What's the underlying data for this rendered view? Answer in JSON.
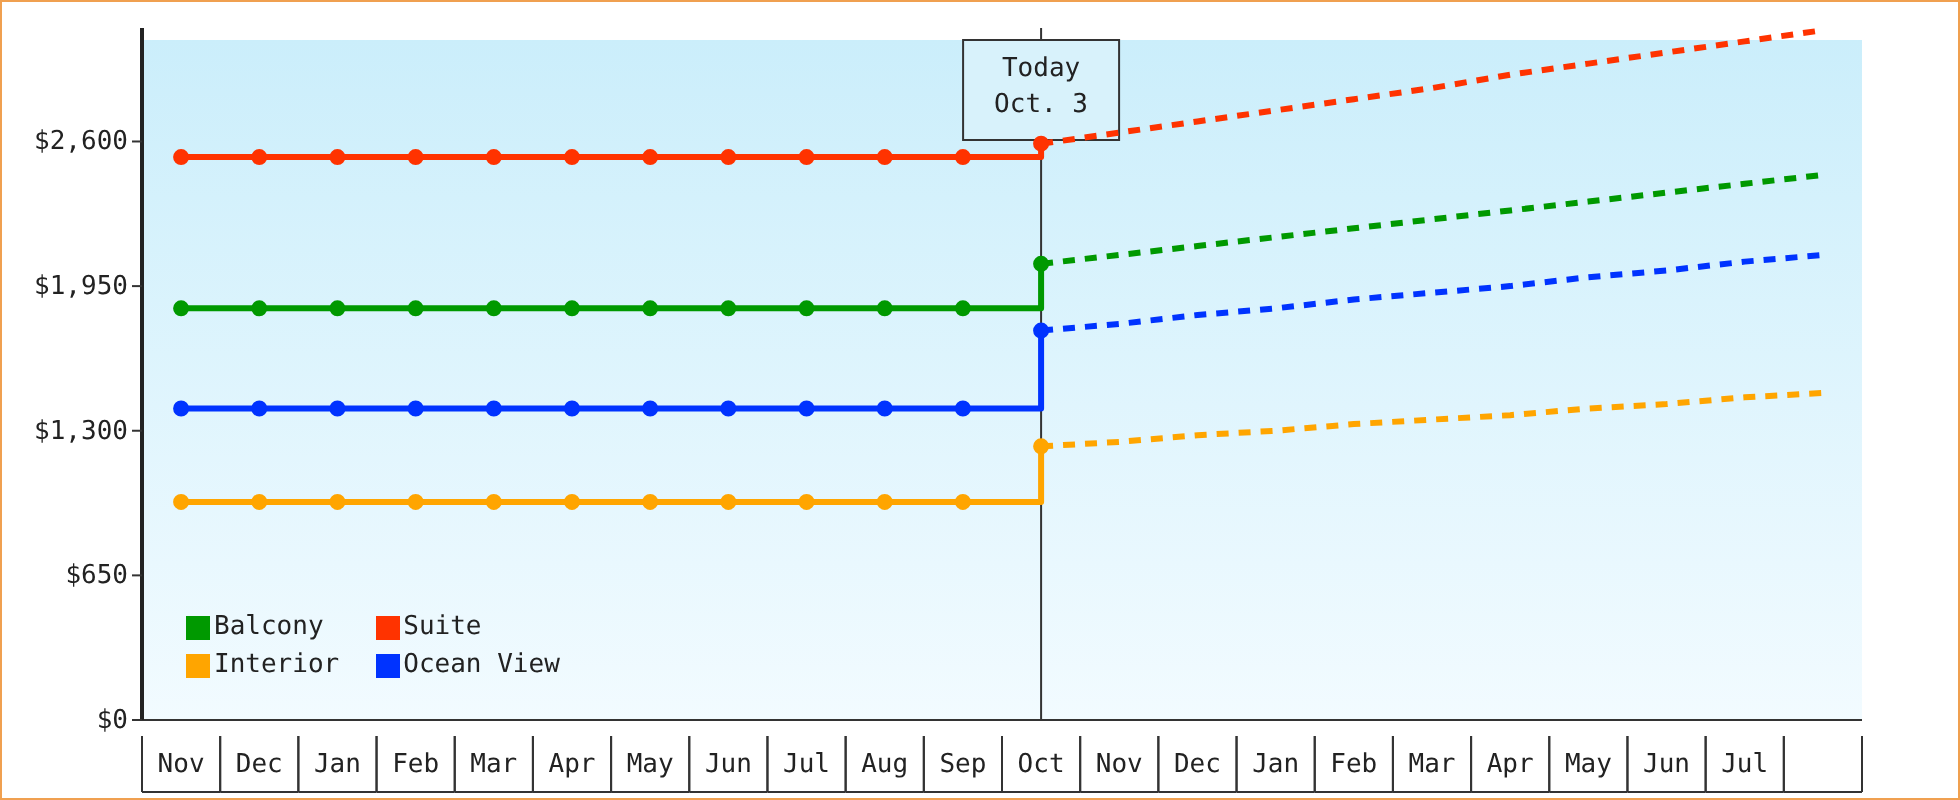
{
  "chart_data": {
    "type": "line",
    "categories": [
      "Nov",
      "Dec",
      "Jan",
      "Feb",
      "Mar",
      "Apr",
      "May",
      "Jun",
      "Jul",
      "Aug",
      "Sep",
      "Oct",
      "Nov",
      "Dec",
      "Jan",
      "Feb",
      "Mar",
      "Apr",
      "May",
      "Jun",
      "Jul",
      null
    ],
    "ylim": [
      0,
      3110
    ],
    "yticks": [
      {
        "value": 0,
        "label": "$0"
      },
      {
        "value": 650,
        "label": "$650"
      },
      {
        "value": 1300,
        "label": "$1,300"
      },
      {
        "value": 1950,
        "label": "$1,950"
      },
      {
        "value": 2600,
        "label": "$2,600"
      }
    ],
    "legend": "bottom left",
    "marker": "circle",
    "series": [
      {
        "name": "Balcony",
        "type": "step",
        "color": "#009900",
        "values": [
          1850,
          1850,
          1850,
          1850,
          1850,
          1850,
          1850,
          1850,
          1850,
          1850,
          1850,
          2050,
          null,
          null,
          null,
          null,
          null,
          null,
          null,
          null,
          null,
          null
        ],
        "line_style": "solid"
      },
      {
        "name": "Suite",
        "type": "step",
        "color": "#ff3300",
        "values": [
          2530,
          2530,
          2530,
          2530,
          2530,
          2530,
          2530,
          2530,
          2530,
          2530,
          2530,
          2590,
          null,
          null,
          null,
          null,
          null,
          null,
          null,
          null,
          null,
          null
        ],
        "line_style": "solid"
      },
      {
        "name": "Interior",
        "type": "step",
        "color": "#ffa500",
        "values": [
          980,
          980,
          980,
          980,
          980,
          980,
          980,
          980,
          980,
          980,
          980,
          1230,
          null,
          null,
          null,
          null,
          null,
          null,
          null,
          null,
          null,
          null
        ],
        "line_style": "solid"
      },
      {
        "name": "Ocean View",
        "type": "step",
        "color": "#0033ff",
        "values": [
          1400,
          1400,
          1400,
          1400,
          1400,
          1400,
          1400,
          1400,
          1400,
          1400,
          1400,
          1750,
          null,
          null,
          null,
          null,
          null,
          null,
          null,
          null,
          null,
          null
        ],
        "line_style": "solid"
      },
      {
        "color": "#ff3300",
        "values": [
          null,
          null,
          null,
          null,
          null,
          null,
          null,
          null,
          null,
          null,
          null,
          2590,
          2640,
          2690,
          2740,
          2790,
          2840,
          2900,
          2950,
          3000,
          3050,
          3100
        ],
        "line_style": "dashed",
        "marker": "none"
      },
      {
        "color": "#009900",
        "values": [
          null,
          null,
          null,
          null,
          null,
          null,
          null,
          null,
          null,
          null,
          null,
          2050,
          2090,
          2130,
          2170,
          2210,
          2250,
          2290,
          2330,
          2370,
          2410,
          2450
        ],
        "line_style": "dashed",
        "marker": "none"
      },
      {
        "color": "#0033ff",
        "values": [
          null,
          null,
          null,
          null,
          null,
          null,
          null,
          null,
          null,
          null,
          null,
          1750,
          1780,
          1820,
          1850,
          1890,
          1920,
          1950,
          1990,
          2020,
          2060,
          2090
        ],
        "line_style": "dashed",
        "marker": "none"
      },
      {
        "color": "#ffa500",
        "values": [
          null,
          null,
          null,
          null,
          null,
          null,
          null,
          null,
          null,
          null,
          null,
          1230,
          1250,
          1280,
          1300,
          1330,
          1350,
          1370,
          1400,
          1420,
          1450,
          1470
        ],
        "line_style": "dashed",
        "marker": "none"
      }
    ],
    "ref_lines": [
      {
        "axis": "x",
        "value": "Oct",
        "label": "Today\nOct. 3",
        "color": "#333333"
      }
    ]
  }
}
